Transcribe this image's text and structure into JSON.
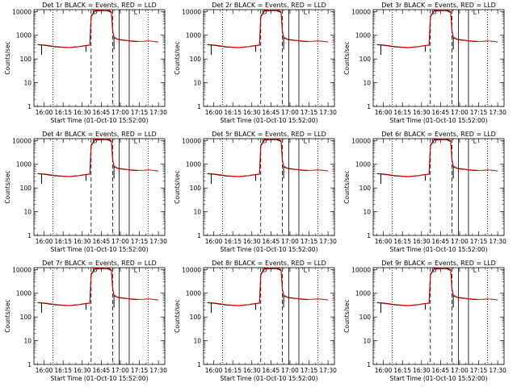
{
  "figure": {
    "x_axis_label": "Start Time (01-Oct-10 15:52:00)",
    "y_axis_label": "Counts/sec"
  },
  "panels": [
    {
      "title": "Det 1r BLACK = Events, RED = LLD"
    },
    {
      "title": "Det 2r BLACK = Events, RED = LLD"
    },
    {
      "title": "Det 3r BLACK = Events, RED = LLD"
    },
    {
      "title": "Det 4r BLACK = Events, RED = LLD"
    },
    {
      "title": "Det 5r BLACK = Events, RED = LLD"
    },
    {
      "title": "Det 6r BLACK = Events, RED = LLD"
    },
    {
      "title": "Det 7r BLACK = Events, RED = LLD"
    },
    {
      "title": "Det 8r BLACK = Events, RED = LLD"
    },
    {
      "title": "Det 9r BLACK = Events, RED = LLD"
    }
  ],
  "colors": {
    "events": "#000000",
    "lld": "#dd0000",
    "background": "#ffffff"
  },
  "chart_data": {
    "type": "line",
    "yscale": "log",
    "ylim": [
      1,
      12000
    ],
    "x_ticks": [
      "16:00",
      "16:15",
      "16:30",
      "16:45",
      "17:00",
      "17:15",
      "17:30"
    ],
    "x_tick_minutes": [
      0,
      15,
      30,
      45,
      60,
      75,
      90
    ],
    "xlim_minutes": [
      -8,
      95
    ],
    "y_ticks": [
      1,
      10,
      100,
      1000,
      10000
    ],
    "y_tick_labels": [
      "1",
      "10",
      "100",
      "1000",
      "10000"
    ],
    "vlines": [
      {
        "x": 7,
        "style": "dotted"
      },
      {
        "x": 37,
        "style": "dashed"
      },
      {
        "x": 54,
        "style": "dashed"
      },
      {
        "x": 59,
        "style": "solid"
      },
      {
        "x": 67,
        "style": "solid"
      },
      {
        "x": 82,
        "style": "dotted"
      }
    ],
    "markers": [
      {
        "x": 40,
        "y": 10000,
        "label": "O"
      },
      {
        "x": 72,
        "y": 10000,
        "label": "L"
      }
    ],
    "series": [
      {
        "name": "Events",
        "color": "#000000",
        "x": [
          -5,
          0,
          5,
          10,
          15,
          20,
          25,
          28,
          30,
          32,
          34,
          36,
          37,
          40,
          45,
          50,
          53,
          54,
          55,
          57,
          59,
          62,
          65,
          67,
          70,
          74
        ],
        "y": [
          400,
          380,
          350,
          320,
          310,
          300,
          320,
          330,
          350,
          360,
          370,
          380,
          6000,
          10500,
          11000,
          11000,
          9000,
          1500,
          800,
          700,
          650,
          620,
          600,
          580,
          560,
          540
        ]
      },
      {
        "name": "LLD",
        "color": "#dd0000",
        "x": [
          -5,
          0,
          5,
          10,
          15,
          20,
          25,
          28,
          30,
          32,
          34,
          36,
          37,
          40,
          45,
          50,
          53,
          54,
          55,
          57,
          59,
          62,
          65,
          67,
          70,
          74,
          78,
          82,
          86,
          90
        ],
        "y": [
          410,
          390,
          360,
          330,
          315,
          305,
          325,
          335,
          355,
          365,
          375,
          385,
          6500,
          11000,
          12000,
          12000,
          10000,
          1600,
          850,
          720,
          670,
          640,
          610,
          590,
          570,
          550,
          560,
          580,
          560,
          520
        ]
      }
    ]
  }
}
